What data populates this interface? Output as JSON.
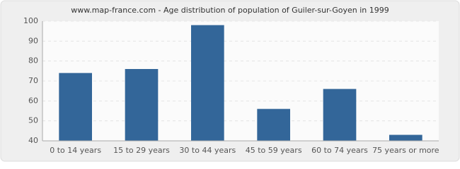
{
  "chart_data": {
    "type": "bar",
    "title": "www.map-france.com - Age distribution of population of Guiler-sur-Goyen in 1999",
    "categories": [
      "0 to 14 years",
      "15 to 29 years",
      "30 to 44 years",
      "45 to 59 years",
      "60 to 74 years",
      "75 years or more"
    ],
    "values": [
      74,
      76,
      98,
      56,
      66,
      43
    ],
    "color": "#336699",
    "ylim": [
      40,
      100
    ],
    "yticks": [
      40,
      50,
      60,
      70,
      80,
      90,
      100
    ],
    "grid": true
  }
}
